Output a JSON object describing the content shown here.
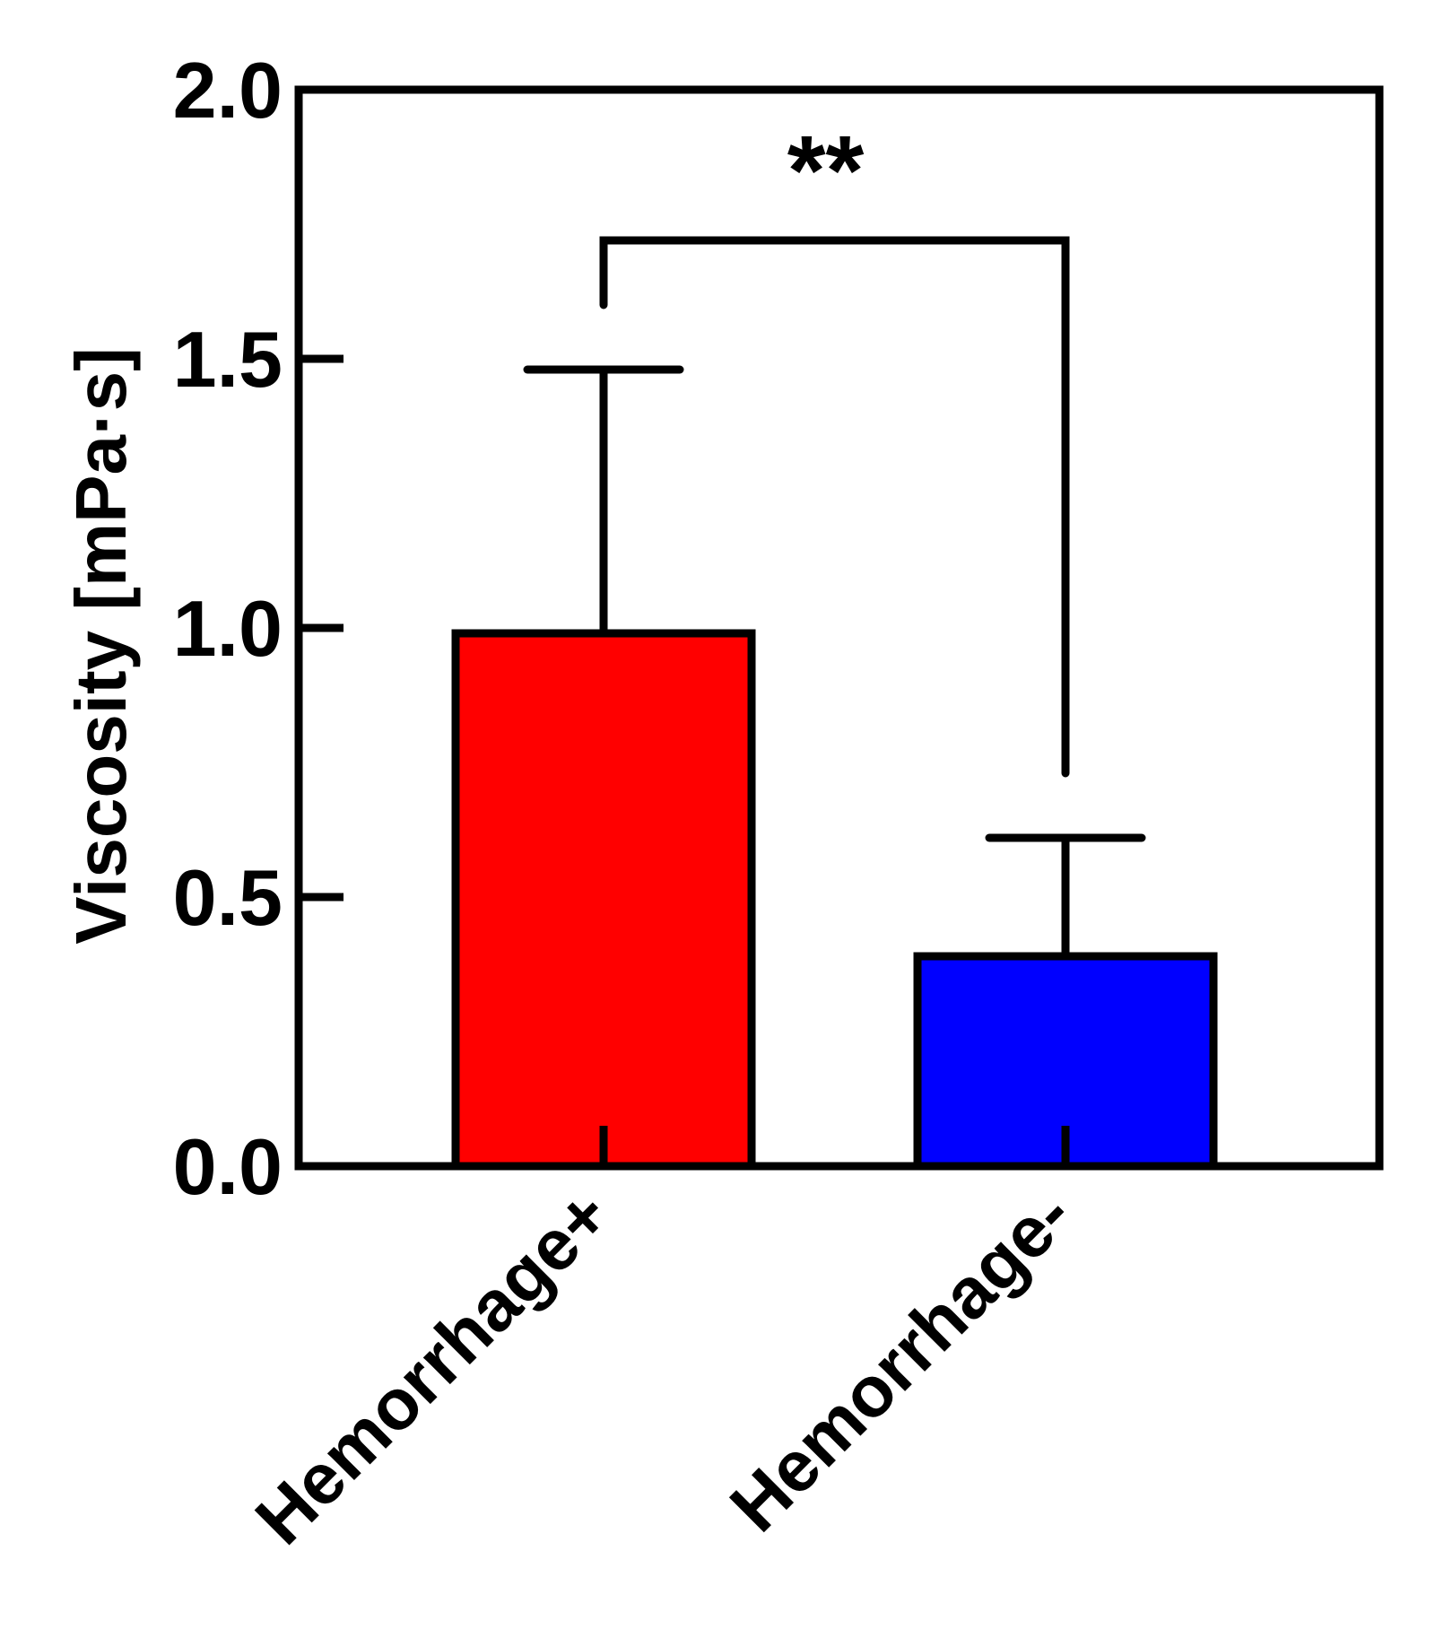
{
  "chart_data": {
    "type": "bar",
    "title": "",
    "xlabel": "",
    "ylabel": "Viscosity [mPa·s]",
    "ylim": [
      0,
      2.0
    ],
    "yticks": [
      0.0,
      0.5,
      1.0,
      1.5,
      2.0
    ],
    "ytick_labels": [
      "0.0",
      "0.5",
      "1.0",
      "1.5",
      "2.0"
    ],
    "categories": [
      "Hemorrhage+",
      "Hemorrhage-"
    ],
    "values": [
      0.99,
      0.39
    ],
    "error_upper": [
      1.48,
      0.61
    ],
    "colors": [
      "#ff0000",
      "#0000ff"
    ],
    "significance": {
      "label": "**",
      "between": [
        0,
        1
      ],
      "bracket_y": 1.72,
      "left_leg_end": 1.6,
      "right_leg_end": 0.73
    }
  }
}
